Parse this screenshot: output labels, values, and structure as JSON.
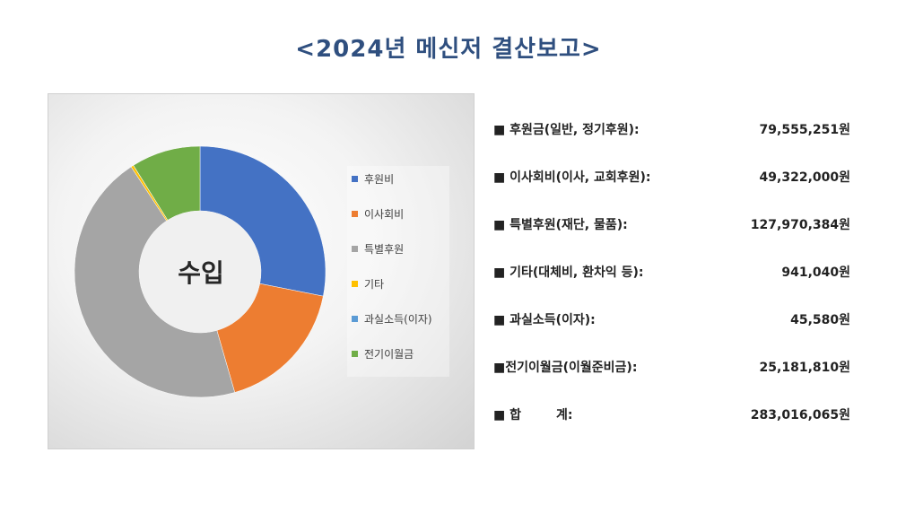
{
  "title": "<2024년 메신저 결산보고>",
  "chart_data": {
    "type": "pie",
    "center_label": "수입",
    "legend_placement": "right",
    "categories": [
      "후원비",
      "이사회비",
      "특별후원",
      "기타",
      "과실소득(이자)",
      "전기이월금"
    ],
    "values": [
      79555251,
      49322000,
      127970384,
      941040,
      45580,
      25181810
    ],
    "colors": [
      "#4472C4",
      "#ED7D31",
      "#A5A5A5",
      "#FFC000",
      "#5B9BD5",
      "#70AD47"
    ]
  },
  "summary": [
    {
      "label": "■ 후원금(일반, 정기후원):",
      "amount": "79,555,251원"
    },
    {
      "label": "■ 이사회비(이사, 교회후원):",
      "amount": "49,322,000원"
    },
    {
      "label": "■ 특별후원(재단, 물품):",
      "amount": "127,970,384원"
    },
    {
      "label": "■ 기타(대체비, 환차익 등):",
      "amount": "941,040원"
    },
    {
      "label": "■ 과실소득(이자):",
      "amount": "45,580원"
    },
    {
      "label": "■전기이월금(이월준비금):",
      "amount": "25,181,810원"
    },
    {
      "label": "■ 합        계:",
      "amount": "283,016,065원"
    }
  ]
}
